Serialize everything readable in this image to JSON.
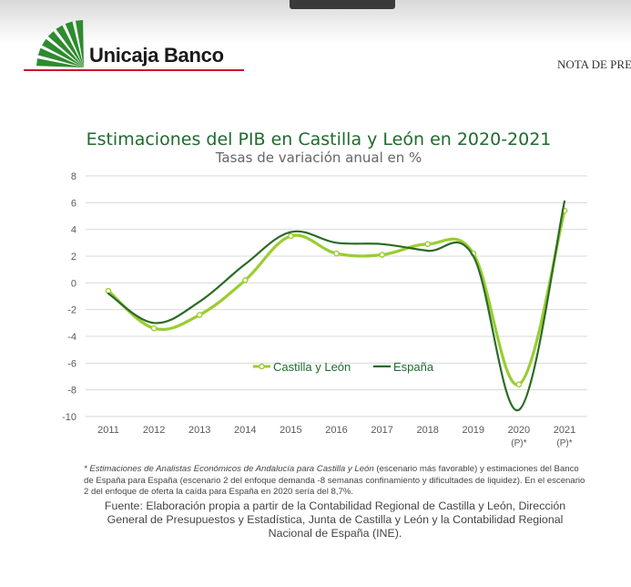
{
  "header": {
    "brand": "Unicaja Banco",
    "note": "NOTA DE PRENSA",
    "brand_color": "#2e8b2e",
    "rule_color": "#c8102e"
  },
  "chart_data": {
    "type": "line",
    "title": "Estimaciones del PIB en Castilla y León en 2020-2021",
    "subtitle": "Tasas de variación anual en %",
    "categories": [
      "2011",
      "2012",
      "2013",
      "2014",
      "2015",
      "2016",
      "2017",
      "2018",
      "2019",
      "2020",
      "2021"
    ],
    "category_sublabels": [
      "",
      "",
      "",
      "",
      "",
      "",
      "",
      "",
      "",
      "(P)*",
      "(P)*"
    ],
    "ylim": [
      -10,
      8
    ],
    "yticks": [
      -10,
      -8,
      -6,
      -4,
      -2,
      0,
      2,
      4,
      6,
      8
    ],
    "grid": true,
    "legend_position": "center-left",
    "series": [
      {
        "name": "Castilla y León",
        "color": "#9acd32",
        "marker": "circle",
        "values": [
          -0.6,
          -3.4,
          -2.4,
          0.2,
          3.5,
          2.2,
          2.1,
          2.9,
          2.2,
          -7.6,
          5.4
        ]
      },
      {
        "name": "España",
        "color": "#2a6b27",
        "marker": "none",
        "values": [
          -0.8,
          -3.0,
          -1.4,
          1.4,
          3.8,
          3.0,
          2.9,
          2.4,
          2.0,
          -9.5,
          6.1
        ]
      }
    ]
  },
  "notes": {
    "footnote_italic": "* Estimaciones de Analistas Económicos de Andalucía para Castilla y León",
    "footnote_rest": " (escenario más favorable) y estimaciones del Banco de España para España (escenario 2 del enfoque demanda -8 semanas confinamiento y dificultades de liquidez). En el escenario 2 del enfoque de oferta la caída para España en 2020 sería del 8,7%.",
    "source": "Fuente: Elaboración propia a partir de la Contabilidad Regional de Castilla y León, Dirección General de Presupuestos y Estadística, Junta de Castilla y León y la Contabilidad Regional Nacional de España (INE)."
  }
}
